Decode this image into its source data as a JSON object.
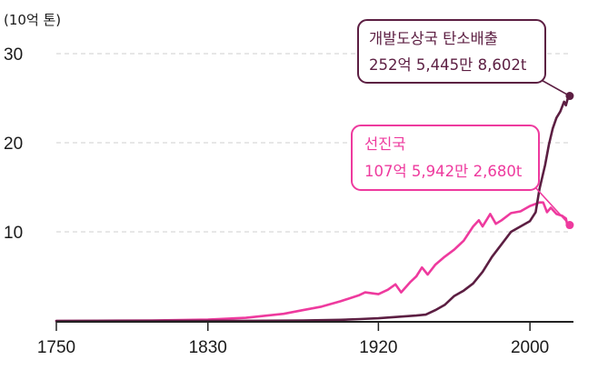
{
  "chart_data": {
    "type": "line",
    "unit_label": "(10억 톤)",
    "xlim": [
      1750,
      2022
    ],
    "ylim": [
      0,
      30
    ],
    "x_ticks": [
      1750,
      1830,
      1920,
      2000
    ],
    "y_ticks": [
      10,
      20,
      30
    ],
    "grid": "horizontal dashed",
    "colors": {
      "developing": "#5c1e42",
      "developed": "#ee3a9e",
      "axis": "#222222",
      "grid": "#cfcfcf"
    },
    "series": [
      {
        "key": "developing",
        "callout": {
          "line1": "개발도상국 탄소배출",
          "line2": "252억 5,445만 8,602t"
        },
        "end_value": 25.25,
        "points": [
          [
            1750,
            0
          ],
          [
            1850,
            0.01
          ],
          [
            1880,
            0.05
          ],
          [
            1900,
            0.12
          ],
          [
            1910,
            0.2
          ],
          [
            1920,
            0.3
          ],
          [
            1930,
            0.45
          ],
          [
            1940,
            0.6
          ],
          [
            1945,
            0.7
          ],
          [
            1950,
            1.2
          ],
          [
            1955,
            1.8
          ],
          [
            1960,
            2.8
          ],
          [
            1965,
            3.4
          ],
          [
            1970,
            4.2
          ],
          [
            1975,
            5.5
          ],
          [
            1980,
            7.2
          ],
          [
            1985,
            8.6
          ],
          [
            1990,
            10.0
          ],
          [
            1995,
            10.6
          ],
          [
            2000,
            11.2
          ],
          [
            2003,
            12.2
          ],
          [
            2005,
            14.8
          ],
          [
            2008,
            17.5
          ],
          [
            2010,
            19.8
          ],
          [
            2012,
            21.6
          ],
          [
            2014,
            22.8
          ],
          [
            2016,
            23.5
          ],
          [
            2018,
            24.6
          ],
          [
            2019,
            24.2
          ],
          [
            2020,
            25.0
          ],
          [
            2021,
            25.25
          ]
        ]
      },
      {
        "key": "developed",
        "callout": {
          "line1": "선진국",
          "line2": "107억 5,942만 2,680t"
        },
        "end_value": 10.76,
        "points": [
          [
            1750,
            0
          ],
          [
            1800,
            0.05
          ],
          [
            1830,
            0.15
          ],
          [
            1850,
            0.35
          ],
          [
            1870,
            0.8
          ],
          [
            1880,
            1.2
          ],
          [
            1890,
            1.6
          ],
          [
            1900,
            2.2
          ],
          [
            1910,
            2.9
          ],
          [
            1913,
            3.2
          ],
          [
            1920,
            3.0
          ],
          [
            1925,
            3.5
          ],
          [
            1929,
            4.1
          ],
          [
            1932,
            3.2
          ],
          [
            1937,
            4.4
          ],
          [
            1940,
            5.0
          ],
          [
            1943,
            6.0
          ],
          [
            1946,
            5.2
          ],
          [
            1950,
            6.3
          ],
          [
            1955,
            7.2
          ],
          [
            1960,
            8.0
          ],
          [
            1965,
            9.0
          ],
          [
            1970,
            10.6
          ],
          [
            1973,
            11.3
          ],
          [
            1975,
            10.6
          ],
          [
            1979,
            12.0
          ],
          [
            1982,
            10.9
          ],
          [
            1985,
            11.3
          ],
          [
            1990,
            12.1
          ],
          [
            1995,
            12.3
          ],
          [
            2000,
            12.9
          ],
          [
            2005,
            13.3
          ],
          [
            2007,
            13.3
          ],
          [
            2009,
            12.2
          ],
          [
            2011,
            12.7
          ],
          [
            2014,
            12.0
          ],
          [
            2017,
            11.8
          ],
          [
            2019,
            11.5
          ],
          [
            2020,
            10.5
          ],
          [
            2021,
            10.76
          ]
        ]
      }
    ]
  }
}
